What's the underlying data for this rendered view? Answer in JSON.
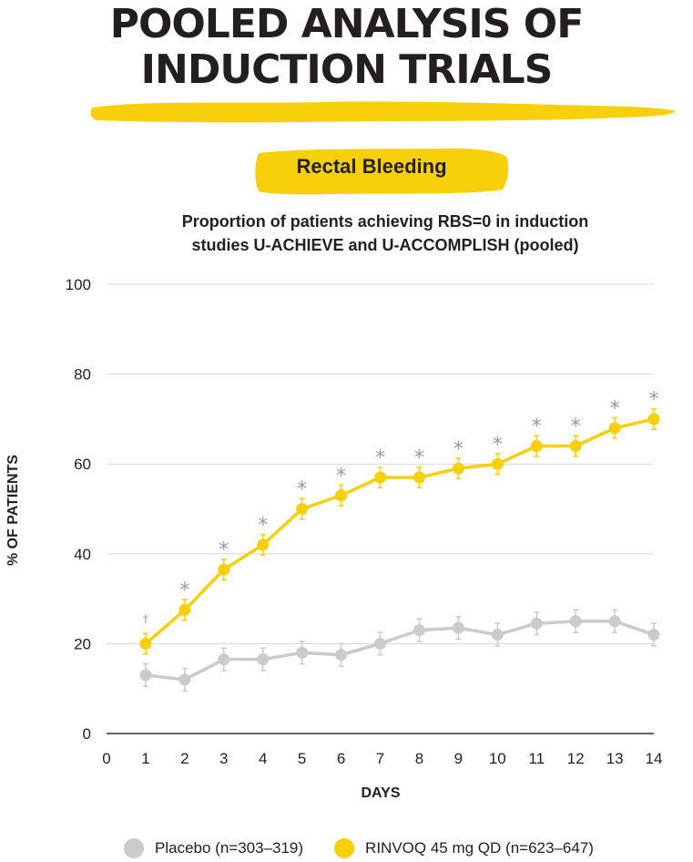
{
  "header": {
    "title_line1": "POOLED ANALYSIS OF",
    "title_line2": "INDUCTION TRIALS",
    "section_label": "Rectal Bleeding",
    "subtitle_line1": "Proportion of patients achieving RBS=0 in induction",
    "subtitle_line2": "studies U-ACHIEVE and U-ACCOMPLISH (pooled)"
  },
  "colors": {
    "accent_yellow": "#f7cf0a",
    "placebo_gray": "#cbcbcb",
    "marker_gray": "#9a9a9a",
    "text_dark": "#231f20"
  },
  "chart_data": {
    "type": "line",
    "xlabel": "DAYS",
    "ylabel": "% OF PATIENTS",
    "xlim": [
      0,
      14
    ],
    "ylim": [
      0,
      100
    ],
    "x_ticks": [
      0,
      1,
      2,
      3,
      4,
      5,
      6,
      7,
      8,
      9,
      10,
      11,
      12,
      13,
      14
    ],
    "y_ticks": [
      0,
      20,
      40,
      60,
      80,
      100
    ],
    "grid": "horizontal",
    "legend_position": "bottom",
    "x": [
      1,
      2,
      3,
      4,
      5,
      6,
      7,
      8,
      9,
      10,
      11,
      12,
      13,
      14
    ],
    "series": [
      {
        "name": "Placebo (n=303–319)",
        "color": "#cbcbcb",
        "values": [
          13,
          12,
          16.5,
          16.5,
          18,
          17.5,
          20,
          23,
          23.5,
          22,
          24.5,
          25,
          25,
          22
        ],
        "error": [
          2.5,
          2.5,
          2.5,
          2.5,
          2.5,
          2.5,
          2.5,
          2.5,
          2.5,
          2.5,
          2.5,
          2.5,
          2.5,
          2.5
        ]
      },
      {
        "name": "RINVOQ 45 mg QD (n=623–647)",
        "color": "#f7cf0a",
        "values": [
          20,
          27.5,
          36.5,
          42,
          50,
          53,
          57,
          57,
          59,
          60,
          64,
          64,
          68,
          70
        ],
        "error": [
          2.3,
          2.3,
          2.3,
          2.3,
          2.3,
          2.3,
          2.3,
          2.3,
          2.3,
          2.3,
          2.3,
          2.3,
          2.3,
          2.3
        ]
      }
    ],
    "significance_markers": [
      "†",
      "*",
      "*",
      "*",
      "*",
      "*",
      "*",
      "*",
      "*",
      "*",
      "*",
      "*",
      "*",
      "*"
    ]
  }
}
